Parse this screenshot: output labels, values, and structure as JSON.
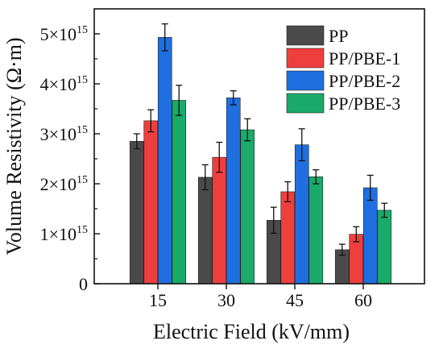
{
  "chart_data": {
    "type": "bar",
    "xlabel": "Electric Field (kV/mm)",
    "ylabel": "Volume Resistivity (Ω·m)",
    "categories": [
      "15",
      "30",
      "45",
      "60"
    ],
    "y_tick_labels": [
      {
        "value": 0,
        "mant": "0",
        "exp": ""
      },
      {
        "value": 1000000000000000.0,
        "mant": "1×10",
        "exp": "15"
      },
      {
        "value": 2000000000000000.0,
        "mant": "2×10",
        "exp": "15"
      },
      {
        "value": 3000000000000000.0,
        "mant": "3×10",
        "exp": "15"
      },
      {
        "value": 4000000000000000.0,
        "mant": "4×10",
        "exp": "15"
      },
      {
        "value": 5000000000000000.0,
        "mant": "5×10",
        "exp": "15"
      }
    ],
    "ylim": [
      0,
      5500000000000000.0
    ],
    "grid": false,
    "legend_position": "top-right",
    "series": [
      {
        "name": "PP",
        "color": "#4a4a4a",
        "values": [
          2850000000000000.0,
          2130000000000000.0,
          1270000000000000.0,
          680000000000000.0
        ],
        "errors": [
          150000000000000.0,
          250000000000000.0,
          260000000000000.0,
          110000000000000.0
        ]
      },
      {
        "name": "PP/PBE-1",
        "color": "#ef3e3e",
        "values": [
          3260000000000000.0,
          2530000000000000.0,
          1840000000000000.0,
          990000000000000.0
        ],
        "errors": [
          220000000000000.0,
          300000000000000.0,
          200000000000000.0,
          150000000000000.0
        ]
      },
      {
        "name": "PP/PBE-2",
        "color": "#1f6fe0",
        "values": [
          4930000000000000.0,
          3720000000000000.0,
          2780000000000000.0,
          1920000000000000.0
        ],
        "errors": [
          270000000000000.0,
          140000000000000.0,
          320000000000000.0,
          250000000000000.0
        ]
      },
      {
        "name": "PP/PBE-3",
        "color": "#1aaa6a",
        "values": [
          3670000000000000.0,
          3080000000000000.0,
          2140000000000000.0,
          1470000000000000.0
        ],
        "errors": [
          300000000000000.0,
          220000000000000.0,
          140000000000000.0,
          140000000000000.0
        ]
      }
    ]
  }
}
